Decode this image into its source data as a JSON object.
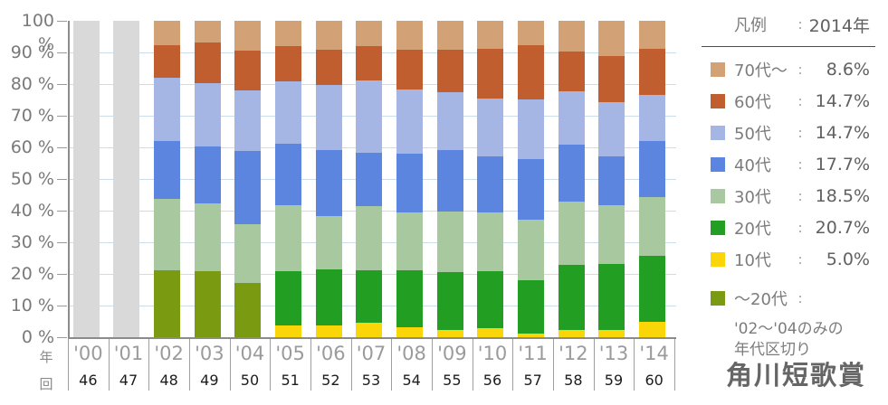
{
  "title": {
    "text": "角川短歌賞"
  },
  "axis_row_labels": {
    "year": "年",
    "round": "回"
  },
  "legend": {
    "header": {
      "label": "凡例",
      "colon": ":",
      "value": "2014年"
    },
    "entries": [
      {
        "label": "70代〜",
        "colon": ":",
        "value": "8.6%",
        "color": "#D2A276"
      },
      {
        "label": "60代",
        "colon": ":",
        "value": "14.7%",
        "color": "#C15E2F"
      },
      {
        "label": "50代",
        "colon": ":",
        "value": "14.7%",
        "color": "#A5B6E5"
      },
      {
        "label": "40代",
        "colon": ":",
        "value": "17.7%",
        "color": "#5B85DE"
      },
      {
        "label": "30代",
        "colon": ":",
        "value": "18.5%",
        "color": "#A8C8A0"
      },
      {
        "label": "20代",
        "colon": ":",
        "value": "20.7%",
        "color": "#229E22"
      },
      {
        "label": "10代",
        "colon": ":",
        "value": "5.0%",
        "color": "#FAD508"
      }
    ],
    "special": {
      "label": "〜20代",
      "colon": ":",
      "color": "#7A9A11",
      "note_lines": [
        "'02〜'04のみの",
        "年代区切り"
      ]
    }
  },
  "chart_data": {
    "type": "bar",
    "stacked": true,
    "unit": "%",
    "ylim": [
      0,
      100
    ],
    "ytick_step": 10,
    "grid": true,
    "legend_position": "right",
    "y_tick_labels": [
      "100 %",
      "90 %",
      "80 %",
      "70 %",
      "60 %",
      "50 %",
      "40 %",
      "30 %",
      "20 %",
      "10 %",
      "0 %"
    ],
    "categories": [
      "'00",
      "'01",
      "'02",
      "'03",
      "'04",
      "'05",
      "'06",
      "'07",
      "'08",
      "'09",
      "'10",
      "'11",
      "'12",
      "'13",
      "'14"
    ],
    "rounds": [
      "46",
      "47",
      "48",
      "49",
      "50",
      "51",
      "52",
      "53",
      "54",
      "55",
      "56",
      "57",
      "58",
      "59",
      "60"
    ],
    "no_data_categories": [
      "'00",
      "'01"
    ],
    "no_data_fill": "#D9D9D9",
    "series": [
      {
        "name": "10代",
        "color": "#FAD508",
        "values": [
          null,
          null,
          null,
          null,
          null,
          3.7,
          3.7,
          4.6,
          3.2,
          2.2,
          2.9,
          1.1,
          2.2,
          2.2,
          5.0
        ]
      },
      {
        "name": "〜20代",
        "color": "#7A9A11",
        "values": [
          null,
          null,
          21.1,
          20.8,
          17.2,
          null,
          null,
          null,
          null,
          null,
          null,
          null,
          null,
          null,
          null
        ]
      },
      {
        "name": "20代",
        "color": "#229E22",
        "values": [
          null,
          null,
          null,
          null,
          null,
          17.1,
          17.6,
          16.6,
          17.9,
          18.4,
          17.9,
          16.8,
          20.8,
          21.0,
          20.7
        ]
      },
      {
        "name": "30代",
        "color": "#A8C8A0",
        "values": [
          null,
          null,
          22.6,
          21.5,
          18.4,
          20.9,
          16.9,
          20.1,
          18.4,
          19.1,
          18.6,
          19.3,
          19.8,
          18.5,
          18.5
        ]
      },
      {
        "name": "40代",
        "color": "#5B85DE",
        "values": [
          null,
          null,
          18.4,
          17.9,
          23.2,
          19.5,
          21.0,
          16.9,
          18.4,
          19.5,
          17.7,
          19.1,
          18.2,
          15.5,
          17.7
        ]
      },
      {
        "name": "50代",
        "color": "#A5B6E5",
        "values": [
          null,
          null,
          19.9,
          20.0,
          19.3,
          19.8,
          20.6,
          23.0,
          20.3,
          18.1,
          18.4,
          18.8,
          16.8,
          17.1,
          14.7
        ]
      },
      {
        "name": "60代",
        "color": "#C15E2F",
        "values": [
          null,
          null,
          10.4,
          12.9,
          12.5,
          11.0,
          11.2,
          10.8,
          12.8,
          13.6,
          15.8,
          17.1,
          12.6,
          14.5,
          14.7
        ]
      },
      {
        "name": "70代〜",
        "color": "#D2A276",
        "values": [
          null,
          null,
          7.6,
          6.9,
          9.4,
          8.0,
          9.0,
          8.0,
          9.0,
          9.1,
          8.7,
          7.8,
          9.6,
          11.2,
          8.6
        ]
      }
    ]
  }
}
